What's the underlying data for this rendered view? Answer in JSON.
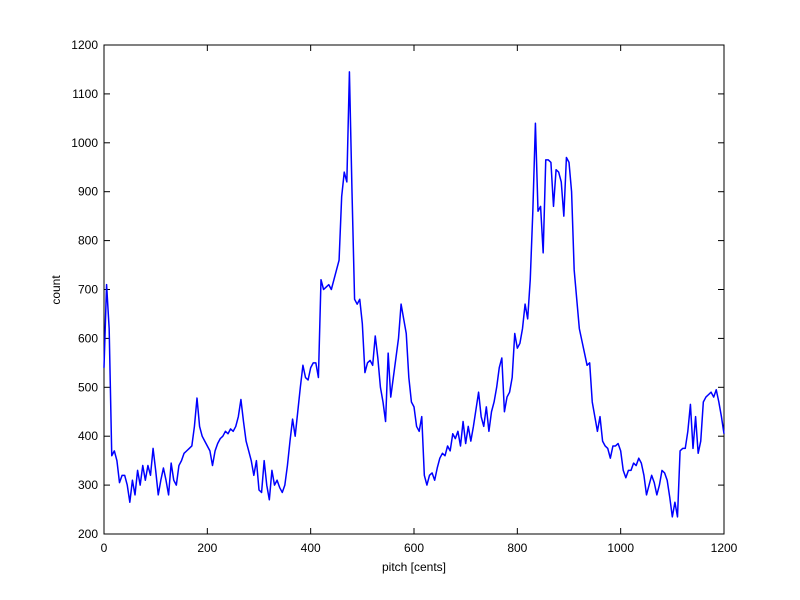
{
  "chart_data": {
    "type": "line",
    "xlabel": "pitch [cents]",
    "ylabel": "count",
    "color": "#0000ff",
    "x": [
      0,
      5,
      10,
      15,
      20,
      25,
      30,
      35,
      40,
      45,
      50,
      55,
      60,
      65,
      70,
      75,
      80,
      85,
      90,
      95,
      100,
      105,
      110,
      115,
      120,
      125,
      130,
      135,
      140,
      145,
      150,
      155,
      160,
      165,
      170,
      175,
      180,
      185,
      190,
      195,
      200,
      205,
      210,
      215,
      220,
      225,
      230,
      235,
      240,
      245,
      250,
      255,
      260,
      265,
      270,
      275,
      280,
      285,
      290,
      295,
      300,
      305,
      310,
      315,
      320,
      325,
      330,
      335,
      340,
      345,
      350,
      355,
      360,
      365,
      370,
      375,
      380,
      385,
      390,
      395,
      400,
      405,
      410,
      415,
      420,
      425,
      430,
      435,
      440,
      445,
      450,
      455,
      460,
      465,
      470,
      475,
      480,
      485,
      490,
      495,
      500,
      505,
      510,
      515,
      520,
      525,
      530,
      535,
      540,
      545,
      550,
      555,
      560,
      565,
      570,
      575,
      580,
      585,
      590,
      595,
      600,
      605,
      610,
      615,
      620,
      625,
      630,
      635,
      640,
      645,
      650,
      655,
      660,
      665,
      670,
      675,
      680,
      685,
      690,
      695,
      700,
      705,
      710,
      715,
      720,
      725,
      730,
      735,
      740,
      745,
      750,
      755,
      760,
      765,
      770,
      775,
      780,
      785,
      790,
      795,
      800,
      805,
      810,
      815,
      820,
      825,
      830,
      835,
      840,
      845,
      850,
      855,
      860,
      865,
      870,
      875,
      880,
      885,
      890,
      895,
      900,
      905,
      910,
      915,
      920,
      925,
      930,
      935,
      940,
      945,
      950,
      955,
      960,
      965,
      970,
      975,
      980,
      985,
      990,
      995,
      1000,
      1005,
      1010,
      1015,
      1020,
      1025,
      1030,
      1035,
      1040,
      1045,
      1050,
      1055,
      1060,
      1065,
      1070,
      1075,
      1080,
      1085,
      1090,
      1095,
      1100,
      1105,
      1110,
      1115,
      1120,
      1125,
      1130,
      1135,
      1140,
      1145,
      1150,
      1155,
      1160,
      1165,
      1170,
      1175,
      1180,
      1185,
      1190,
      1195,
      1200
    ],
    "values": [
      540,
      710,
      620,
      360,
      370,
      350,
      305,
      320,
      320,
      300,
      265,
      310,
      280,
      330,
      300,
      340,
      310,
      340,
      320,
      375,
      330,
      280,
      310,
      335,
      310,
      280,
      345,
      310,
      300,
      340,
      350,
      365,
      370,
      375,
      380,
      420,
      478,
      420,
      400,
      390,
      380,
      370,
      340,
      370,
      385,
      395,
      400,
      410,
      405,
      415,
      410,
      420,
      440,
      475,
      430,
      390,
      370,
      350,
      320,
      350,
      290,
      285,
      350,
      300,
      270,
      330,
      300,
      310,
      295,
      285,
      300,
      340,
      390,
      435,
      400,
      450,
      500,
      545,
      520,
      515,
      540,
      550,
      550,
      520,
      720,
      700,
      705,
      710,
      700,
      720,
      740,
      760,
      890,
      940,
      920,
      1145,
      900,
      680,
      670,
      680,
      630,
      530,
      550,
      555,
      545,
      605,
      560,
      500,
      470,
      430,
      570,
      480,
      520,
      560,
      600,
      670,
      640,
      610,
      520,
      470,
      460,
      420,
      410,
      440,
      320,
      300,
      320,
      325,
      310,
      335,
      355,
      365,
      360,
      380,
      370,
      405,
      395,
      410,
      380,
      430,
      385,
      420,
      390,
      420,
      455,
      490,
      440,
      420,
      460,
      410,
      450,
      470,
      500,
      540,
      560,
      450,
      480,
      490,
      520,
      610,
      580,
      590,
      620,
      670,
      640,
      720,
      860,
      1040,
      860,
      870,
      775,
      965,
      965,
      960,
      870,
      945,
      940,
      920,
      850,
      970,
      960,
      900,
      740,
      680,
      620,
      595,
      570,
      545,
      550,
      470,
      440,
      410,
      440,
      390,
      380,
      375,
      355,
      380,
      380,
      385,
      370,
      330,
      315,
      330,
      330,
      345,
      340,
      355,
      345,
      320,
      280,
      300,
      320,
      305,
      280,
      300,
      330,
      325,
      310,
      275,
      235,
      265,
      235,
      370,
      375,
      375,
      410,
      465,
      375,
      440,
      365,
      390,
      470,
      480,
      485,
      490,
      480,
      495,
      470,
      440,
      405
    ],
    "xlim": [
      0,
      1200
    ],
    "xticks": [
      0,
      200,
      400,
      600,
      800,
      1000,
      1200
    ],
    "ylim": [
      200,
      1200
    ],
    "yticks": [
      200,
      300,
      400,
      500,
      600,
      700,
      800,
      900,
      1000,
      1100,
      1200
    ]
  }
}
